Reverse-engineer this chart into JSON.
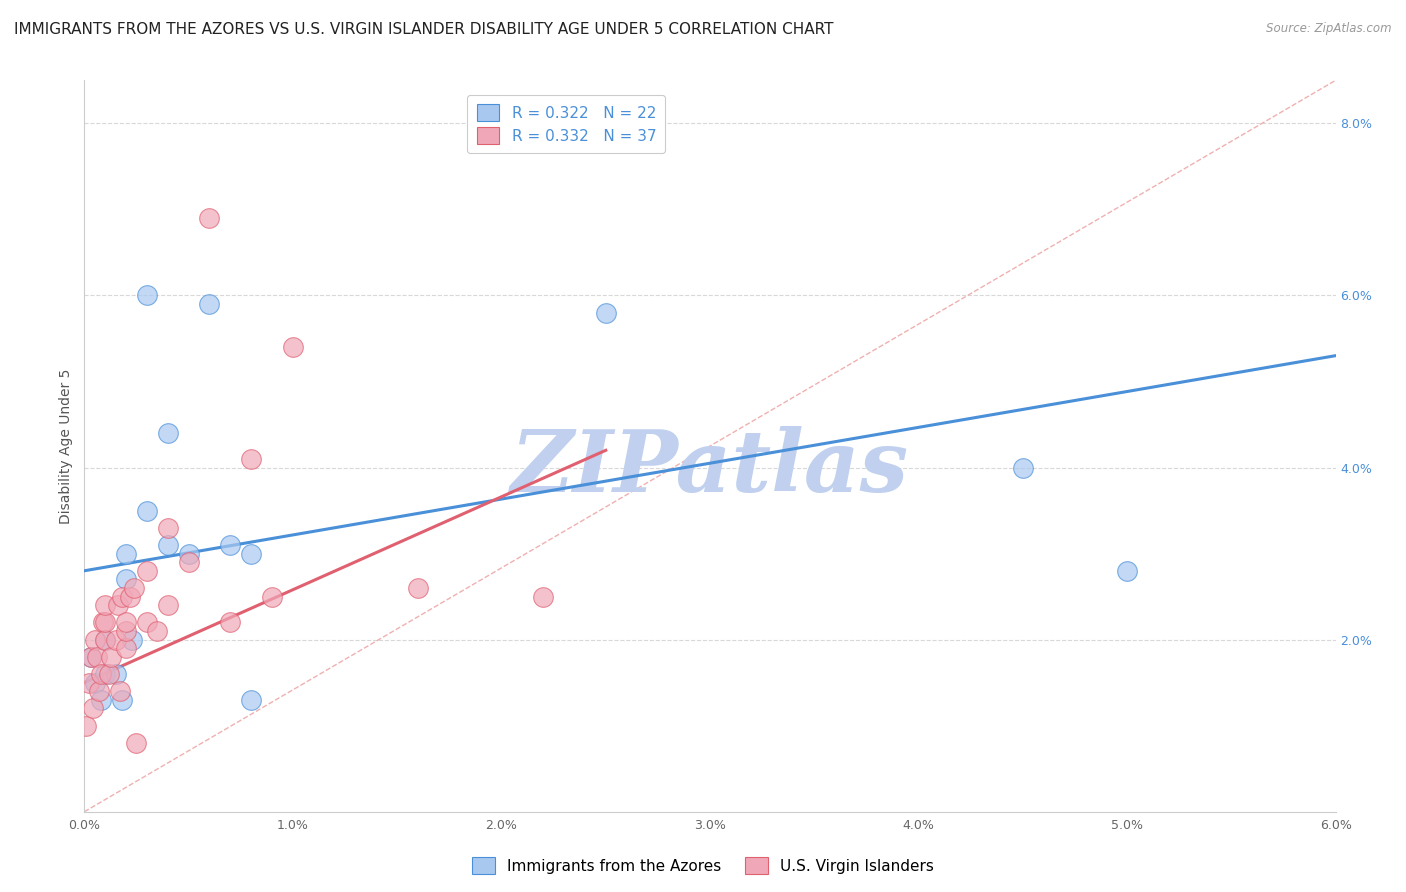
{
  "title": "IMMIGRANTS FROM THE AZORES VS U.S. VIRGIN ISLANDER DISABILITY AGE UNDER 5 CORRELATION CHART",
  "source": "Source: ZipAtlas.com",
  "ylabel": "Disability Age Under 5",
  "xlim": [
    0.0,
    0.06
  ],
  "ylim": [
    0.0,
    0.085
  ],
  "x_ticks": [
    0.0,
    0.01,
    0.02,
    0.03,
    0.04,
    0.05,
    0.06
  ],
  "x_tick_labels": [
    "0.0%",
    "1.0%",
    "2.0%",
    "3.0%",
    "4.0%",
    "5.0%",
    "6.0%"
  ],
  "y_ticks_right": [
    0.0,
    0.02,
    0.04,
    0.06,
    0.08
  ],
  "y_tick_labels_right": [
    "",
    "2.0%",
    "4.0%",
    "6.0%",
    "8.0%"
  ],
  "blue_R": "0.322",
  "blue_N": "22",
  "pink_R": "0.332",
  "pink_N": "37",
  "blue_scatter_x": [
    0.0003,
    0.0005,
    0.0008,
    0.001,
    0.001,
    0.0015,
    0.0018,
    0.002,
    0.002,
    0.0023,
    0.003,
    0.003,
    0.004,
    0.004,
    0.005,
    0.006,
    0.007,
    0.008,
    0.008,
    0.025,
    0.045,
    0.05
  ],
  "blue_scatter_y": [
    0.018,
    0.015,
    0.013,
    0.02,
    0.016,
    0.016,
    0.013,
    0.03,
    0.027,
    0.02,
    0.035,
    0.06,
    0.031,
    0.044,
    0.03,
    0.059,
    0.031,
    0.03,
    0.013,
    0.058,
    0.04,
    0.028
  ],
  "pink_scatter_x": [
    0.0001,
    0.0002,
    0.0003,
    0.0004,
    0.0005,
    0.0006,
    0.0007,
    0.0008,
    0.0009,
    0.001,
    0.001,
    0.001,
    0.0012,
    0.0013,
    0.0015,
    0.0016,
    0.0017,
    0.0018,
    0.002,
    0.002,
    0.002,
    0.0022,
    0.0024,
    0.0025,
    0.003,
    0.003,
    0.0035,
    0.004,
    0.004,
    0.005,
    0.006,
    0.007,
    0.008,
    0.009,
    0.01,
    0.016,
    0.022
  ],
  "pink_scatter_y": [
    0.01,
    0.015,
    0.018,
    0.012,
    0.02,
    0.018,
    0.014,
    0.016,
    0.022,
    0.02,
    0.022,
    0.024,
    0.016,
    0.018,
    0.02,
    0.024,
    0.014,
    0.025,
    0.019,
    0.021,
    0.022,
    0.025,
    0.026,
    0.008,
    0.022,
    0.028,
    0.021,
    0.024,
    0.033,
    0.029,
    0.069,
    0.022,
    0.041,
    0.025,
    0.054,
    0.026,
    0.025
  ],
  "blue_line_start_x": 0.0,
  "blue_line_start_y": 0.028,
  "blue_line_end_x": 0.06,
  "blue_line_end_y": 0.053,
  "pink_line_start_x": 0.0,
  "pink_line_start_y": 0.015,
  "pink_line_end_x": 0.025,
  "pink_line_end_y": 0.042,
  "blue_line_color": "#4a90d9",
  "pink_line_color": "#e06070",
  "blue_scatter_color": "#a8c8f0",
  "pink_scatter_color": "#f0a8b8",
  "diagonal_color": "#cccccc",
  "watermark_text": "ZIPatlas",
  "watermark_color": "#c0d0ee",
  "legend_labels": [
    "Immigrants from the Azores",
    "U.S. Virgin Islanders"
  ],
  "grid_color": "#d8d8d8",
  "background_color": "#ffffff",
  "title_fontsize": 11,
  "axis_label_fontsize": 10,
  "tick_fontsize": 9,
  "legend_fontsize": 11
}
